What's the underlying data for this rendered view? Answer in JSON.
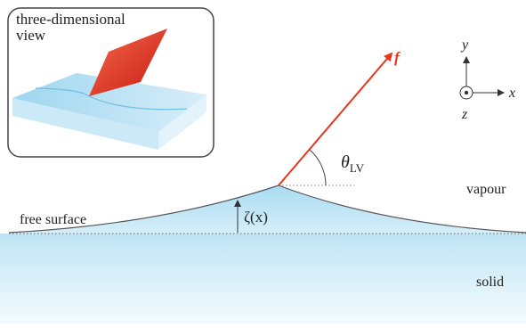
{
  "inset": {
    "title_line1": "three-dimensional",
    "title_line2": "view"
  },
  "labels": {
    "force": "f",
    "angle_symbol": "θ",
    "angle_subscript": "LV",
    "vapour": "vapour",
    "solid": "solid",
    "free_surface": "free surface",
    "height": "ζ(x)"
  },
  "axes": {
    "x": "x",
    "y": "y",
    "z": "z"
  },
  "colors": {
    "force_arrow": "#e8341c",
    "solid_top": "#bfe4f4",
    "solid_bottom": "#f4fbfe",
    "bump_top": "#a9dcf3",
    "outline": "#555555"
  }
}
